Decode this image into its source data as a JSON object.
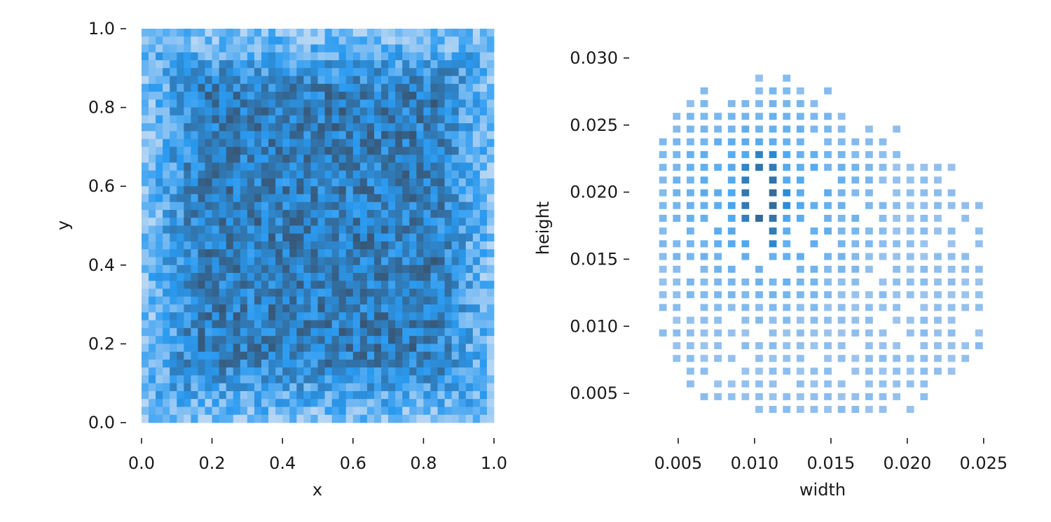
{
  "chart_data": [
    {
      "type": "heatmap",
      "xlabel": "x",
      "ylabel": "y",
      "xlim": [
        0.0,
        1.0
      ],
      "ylim": [
        0.0,
        1.0
      ],
      "x_ticks": [
        "0.0",
        "0.2",
        "0.4",
        "0.6",
        "0.8",
        "1.0"
      ],
      "y_ticks": [
        "0.0",
        "0.2",
        "0.4",
        "0.6",
        "0.8",
        "1.0"
      ],
      "bins": [
        50,
        50
      ],
      "grid": false,
      "colors": {
        "low": "#b7d6f4",
        "mid": "#2a9af0",
        "high": "#38526e"
      },
      "pattern": "uniformly distributed points; darker (higher count) in interior, lighter toward edges"
    },
    {
      "type": "heatmap",
      "xlabel": "width",
      "ylabel": "height",
      "xlim": [
        0.0028,
        0.0262
      ],
      "ylim": [
        0.0025,
        0.0325
      ],
      "x_ticks": [
        "0.005",
        "0.010",
        "0.015",
        "0.020",
        "0.025"
      ],
      "y_ticks": [
        "0.005",
        "0.010",
        "0.015",
        "0.020",
        "0.025",
        "0.030"
      ],
      "x_bin_width": 0.0009,
      "y_bin_height": 0.00095,
      "grid": false,
      "colors": {
        "low": "#a9c8ed",
        "mid": "#2a9af0",
        "high": "#38526e"
      },
      "peak": {
        "width": 0.0105,
        "height": 0.0195
      }
    }
  ]
}
